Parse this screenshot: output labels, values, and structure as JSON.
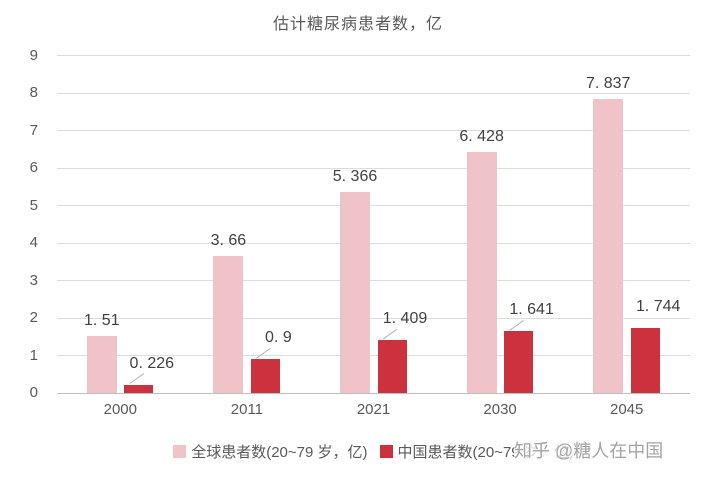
{
  "title": "估计糖尿病患者数，亿",
  "watermark": "知乎 @糖人在中国",
  "colors": {
    "global_series": "#f0c3c8",
    "china_series": "#cc313e",
    "gridline": "#dcdcdc",
    "axis_line": "#bfbfbf",
    "tick_text": "#595959",
    "value_label_text": "#404040",
    "leader_line": "#b3b3b3",
    "watermark_text": "#a3a3a3"
  },
  "chart_data": {
    "type": "bar",
    "title": "估计糖尿病患者数，亿",
    "categories": [
      "2000",
      "2011",
      "2021",
      "2030",
      "2045"
    ],
    "series": [
      {
        "name": "全球患者数(20~79 岁，亿)",
        "color": "#f0c3c8",
        "values": [
          1.51,
          3.66,
          5.366,
          6.428,
          7.837
        ],
        "labels": [
          "1. 51",
          "3. 66",
          "5. 366",
          "6. 428",
          "7. 837"
        ]
      },
      {
        "name": "中国患者数(20~79 岁，亿)",
        "color": "#cc313e",
        "values": [
          0.226,
          0.9,
          1.409,
          1.641,
          1.744
        ],
        "labels": [
          "0. 226",
          "0. 9",
          "1. 409",
          "1. 641",
          "1. 744"
        ],
        "label_leader": [
          true,
          true,
          true,
          true,
          false
        ]
      }
    ],
    "xlabel": "",
    "ylabel": "",
    "ylim": [
      0,
      9
    ],
    "ytick_step": 1,
    "grid": true,
    "legend_position": "bottom"
  }
}
